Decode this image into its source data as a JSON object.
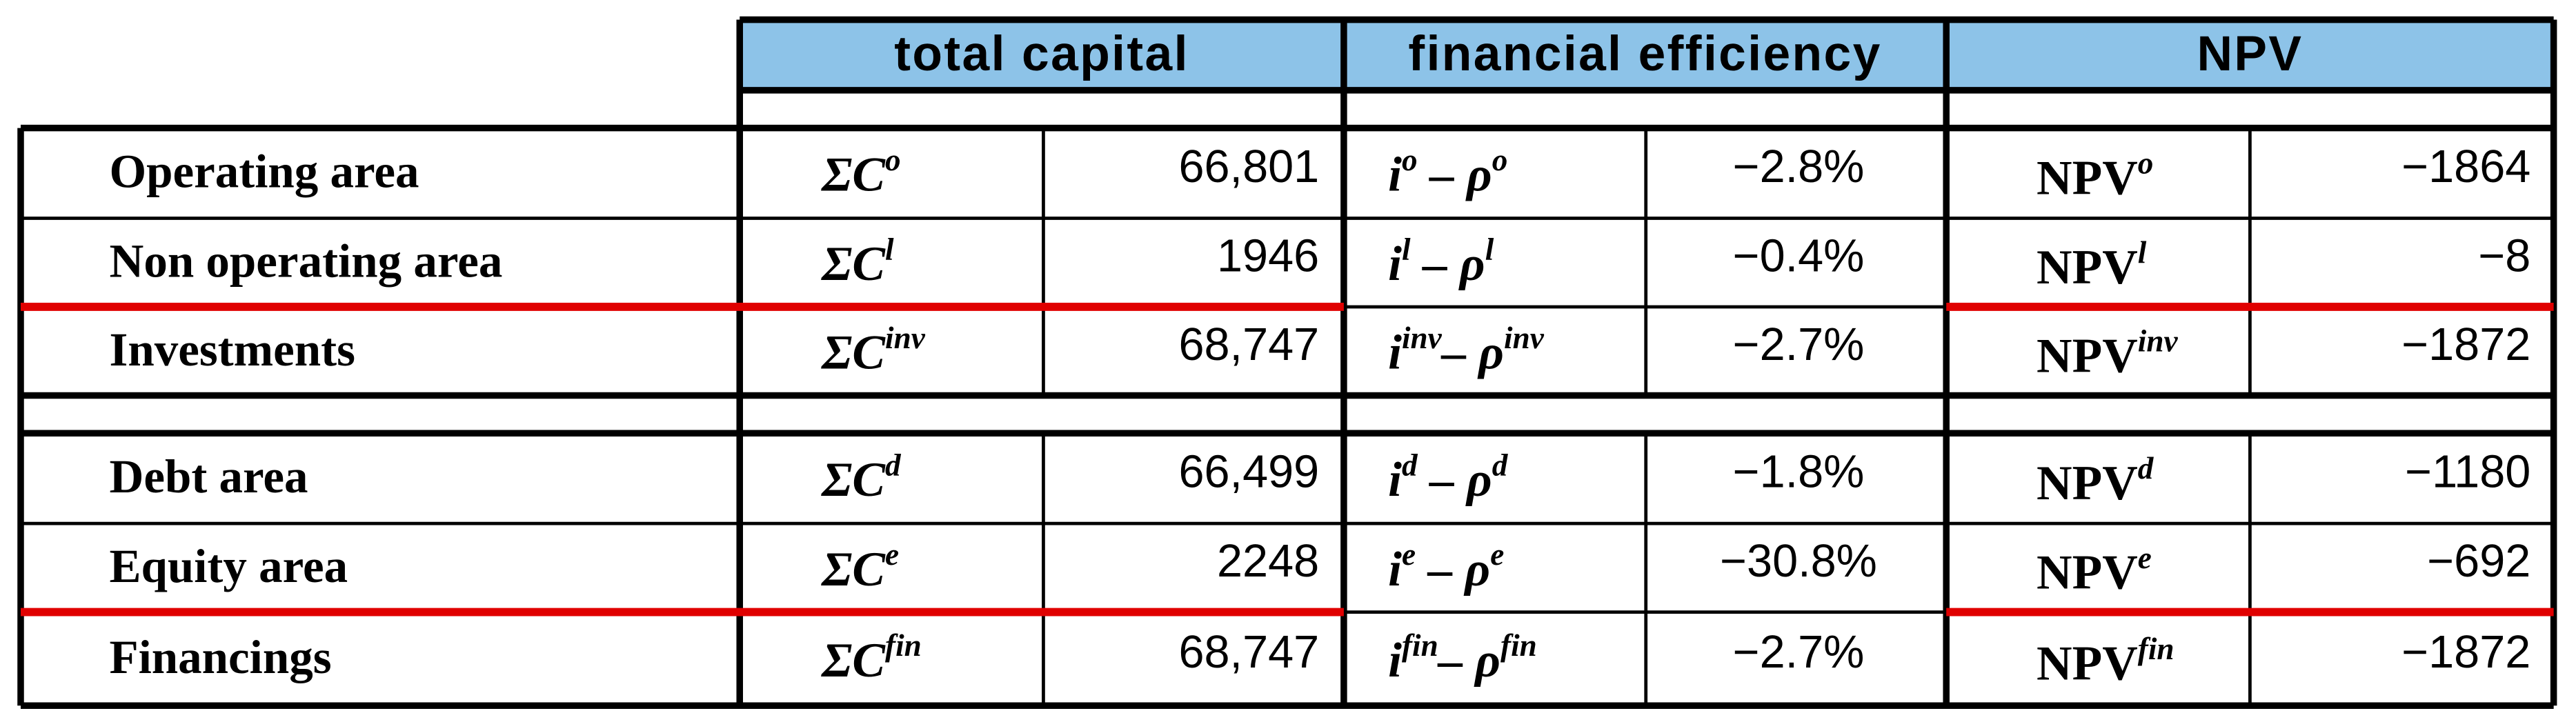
{
  "header": {
    "columns": [
      "total capital",
      "financial efficiency",
      "NPV"
    ]
  },
  "rows": [
    {
      "label": "Operating area",
      "capital": {
        "base": "ΣC",
        "sup": "o"
      },
      "capital_value": "66,801",
      "efficiency": {
        "base1": "i",
        "sup1": "o",
        "base2": " – ρ",
        "sup2": "o"
      },
      "efficiency_value": "−2.8%",
      "npv": {
        "base": "NPV",
        "sup": "o"
      },
      "npv_value": "−1864"
    },
    {
      "label": "Non operating area",
      "capital": {
        "base": "ΣC",
        "sup": "l"
      },
      "capital_value": "1946",
      "efficiency": {
        "base1": "i",
        "sup1": "l",
        "base2": " – ρ",
        "sup2": "l"
      },
      "efficiency_value": "−0.4%",
      "npv": {
        "base": "NPV",
        "sup": "l"
      },
      "npv_value": "−8"
    },
    {
      "label": "Investments",
      "capital": {
        "base": "ΣC",
        "sup": "inv"
      },
      "capital_value": "68,747",
      "efficiency": {
        "base1": "i",
        "sup1": "inv",
        "base2": "– ρ",
        "sup2": "inv"
      },
      "efficiency_value": "−2.7%",
      "npv": {
        "base": "NPV",
        "sup": "inv"
      },
      "npv_value": "−1872"
    },
    {
      "label": "Debt area",
      "capital": {
        "base": "ΣC",
        "sup": "d"
      },
      "capital_value": "66,499",
      "efficiency": {
        "base1": "i",
        "sup1": "d",
        "base2": " – ρ",
        "sup2": "d"
      },
      "efficiency_value": "−1.8%",
      "npv": {
        "base": "NPV",
        "sup": "d"
      },
      "npv_value": "−1180"
    },
    {
      "label": "Equity area",
      "capital": {
        "base": "ΣC",
        "sup": "e"
      },
      "capital_value": "2248",
      "efficiency": {
        "base1": "i",
        "sup1": "e",
        "base2": " – ρ",
        "sup2": "e"
      },
      "efficiency_value": "−30.8%",
      "npv": {
        "base": "NPV",
        "sup": "e"
      },
      "npv_value": "−692"
    },
    {
      "label": "Financings",
      "capital": {
        "base": "ΣC",
        "sup": "fin"
      },
      "capital_value": "68,747",
      "efficiency": {
        "base1": "i",
        "sup1": "fin",
        "base2": "– ρ",
        "sup2": "fin"
      },
      "efficiency_value": "−2.7%",
      "npv": {
        "base": "NPV",
        "sup": "fin"
      },
      "npv_value": "−1872"
    }
  ]
}
